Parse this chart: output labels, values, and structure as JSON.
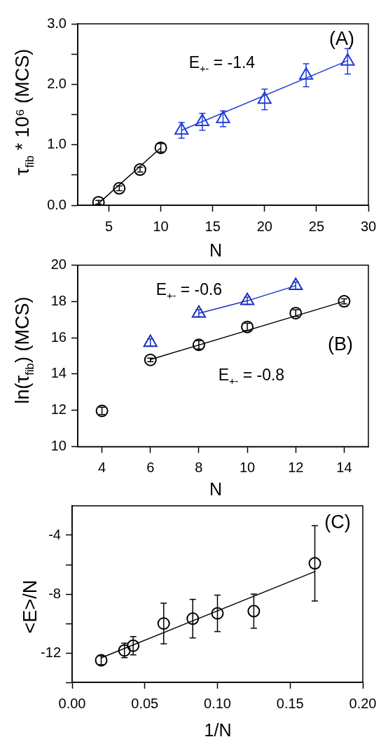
{
  "chart_data": [
    {
      "type": "scatter",
      "xlabel": "N",
      "ylabel": "τ$_{fib}$ * 10⁶ (MCS)",
      "annotations": [
        "(A)",
        "E$_{+-}$ = -1.4"
      ],
      "xlim": [
        2,
        30
      ],
      "xticks": [
        5,
        10,
        15,
        20,
        25,
        30
      ],
      "ylim": [
        0,
        3
      ],
      "yticks": [
        {
          "value": 0,
          "label": "0.0"
        },
        {
          "value": 0.5,
          "label": null
        },
        {
          "value": 1,
          "label": "1.0"
        },
        {
          "value": 1.5,
          "label": null
        },
        {
          "value": 2,
          "label": "2.0"
        },
        {
          "value": 2.5,
          "label": null
        },
        {
          "value": 3,
          "label": "3.0"
        }
      ],
      "series": [
        {
          "color": "#000000",
          "marker": "circle",
          "x": [
            4,
            6,
            8,
            10
          ],
          "values": [
            0.05,
            0.28,
            0.59,
            0.95
          ],
          "errors": [
            0.03,
            0.04,
            0.04,
            0.07
          ]
        },
        {
          "type": "line",
          "color": "#000000",
          "x": [
            4,
            10
          ],
          "values": [
            0.03,
            0.95
          ]
        },
        {
          "color": "#1e3cdc",
          "marker": "triangle",
          "x": [
            12,
            14,
            16,
            20,
            24,
            28
          ],
          "values": [
            1.24,
            1.38,
            1.43,
            1.75,
            2.15,
            2.38
          ],
          "errors": [
            0.13,
            0.14,
            0.13,
            0.17,
            0.19,
            0.21
          ]
        },
        {
          "type": "line",
          "color": "#1e3cdc",
          "x": [
            12,
            28
          ],
          "values": [
            1.24,
            2.39
          ]
        }
      ]
    },
    {
      "type": "scatter",
      "xlabel": "N",
      "ylabel": "ln(τ$_{fib}$) (MCS)",
      "annotations": [
        "E$_{+-}$ = -0.6",
        "(B)",
        "E$_{+-}$ = -0.8"
      ],
      "xlim": [
        3,
        15
      ],
      "xticks": [
        4,
        6,
        8,
        10,
        12,
        14
      ],
      "ylim": [
        10,
        20
      ],
      "yticks": [
        10,
        12,
        14,
        16,
        18,
        20
      ],
      "series": [
        {
          "color": "#000000",
          "marker": "circle",
          "x": [
            4,
            6,
            8,
            10,
            12,
            14
          ],
          "values": [
            11.97,
            14.78,
            15.61,
            16.6,
            17.36,
            18.01
          ],
          "errors": [
            0.2,
            0.1,
            0.23,
            0.2,
            0.18,
            0.14
          ]
        },
        {
          "type": "line",
          "color": "#000000",
          "x": [
            6,
            14
          ],
          "values": [
            14.8,
            18.01
          ]
        },
        {
          "color": "#1c30c0",
          "marker": "triangle",
          "x": [
            6
          ],
          "values": [
            15.74
          ],
          "errors": [
            0.2
          ]
        },
        {
          "type": "line",
          "color": "#1c30c0",
          "marker": "triangle",
          "x": [
            8,
            10,
            12
          ],
          "values": [
            17.35,
            18.04,
            18.87
          ],
          "errors": [
            0.2,
            0.2,
            0.2
          ]
        }
      ]
    },
    {
      "type": "scatter",
      "xlabel": "1/N",
      "ylabel": "<E>/N",
      "annotations": [
        "(C)"
      ],
      "xlim": [
        0,
        0.2
      ],
      "xticks": [
        {
          "value": 0,
          "label": "0.00"
        },
        {
          "value": 0.05,
          "label": "0.05"
        },
        {
          "value": 0.1,
          "label": "0.10"
        },
        {
          "value": 0.15,
          "label": "0.15"
        },
        {
          "value": 0.2,
          "label": "0.20"
        }
      ],
      "ylim": [
        -14,
        -2
      ],
      "yticks": [
        {
          "value": -14,
          "label": null
        },
        -12,
        {
          "value": -10,
          "label": null
        },
        -8,
        {
          "value": -6,
          "label": null
        },
        -4
      ],
      "series": [
        {
          "color": "#000000",
          "marker": "circle",
          "x": [
            0.02,
            0.036,
            0.042,
            0.063,
            0.083,
            0.1,
            0.125,
            0.167
          ],
          "values": [
            -12.5,
            -11.83,
            -11.51,
            -10.0,
            -9.67,
            -9.31,
            -9.16,
            -5.91
          ],
          "errors": [
            0.3,
            0.49,
            0.62,
            1.38,
            1.31,
            1.24,
            1.16,
            2.56
          ]
        },
        {
          "type": "line",
          "color": "#000000",
          "x": [
            0.02,
            0.167
          ],
          "values": [
            -12.33,
            -6.47
          ]
        }
      ]
    }
  ]
}
